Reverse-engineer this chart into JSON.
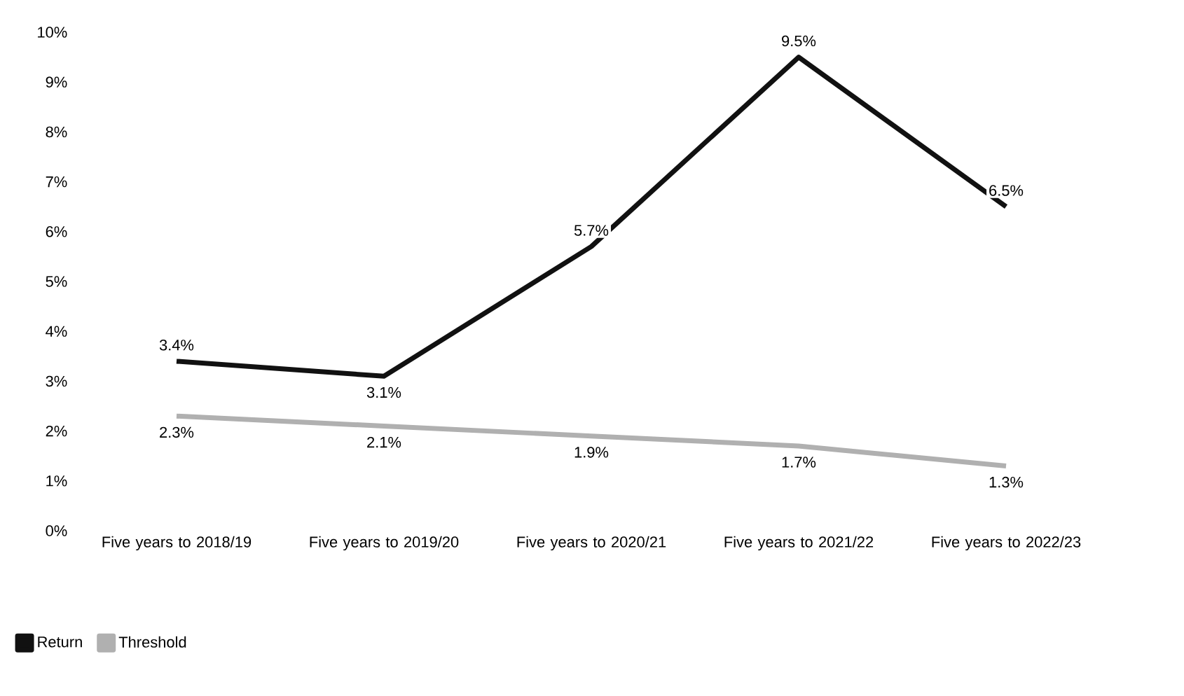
{
  "chart_data": {
    "type": "line",
    "categories": [
      "Five years to 2018/19",
      "Five years to 2019/20",
      "Five years to 2020/21",
      "Five years to 2021/22",
      "Five years to 2022/23"
    ],
    "series": [
      {
        "name": "Return",
        "color": "#111111",
        "values": [
          3.4,
          3.1,
          5.7,
          9.5,
          6.5
        ],
        "value_labels": [
          "3.4%",
          "3.1%",
          "5.7%",
          "9.5%",
          "6.5%"
        ]
      },
      {
        "name": "Threshold",
        "color": "#b0b0b0",
        "values": [
          2.3,
          2.1,
          1.9,
          1.7,
          1.3
        ],
        "value_labels": [
          "2.3%",
          "2.1%",
          "1.9%",
          "1.7%",
          "1.3%"
        ]
      }
    ],
    "ylim": [
      0,
      10
    ],
    "yticks": [
      {
        "value": 0,
        "label": "0%"
      },
      {
        "value": 1,
        "label": "1%"
      },
      {
        "value": 2,
        "label": "2%"
      },
      {
        "value": 3,
        "label": "3%"
      },
      {
        "value": 4,
        "label": "4%"
      },
      {
        "value": 5,
        "label": "5%"
      },
      {
        "value": 6,
        "label": "6%"
      },
      {
        "value": 7,
        "label": "7%"
      },
      {
        "value": 8,
        "label": "8%"
      },
      {
        "value": 9,
        "label": "9%"
      },
      {
        "value": 10,
        "label": "10%"
      }
    ],
    "grid": false,
    "legend": "bottom left",
    "marker": "none",
    "line_style": "solid"
  }
}
